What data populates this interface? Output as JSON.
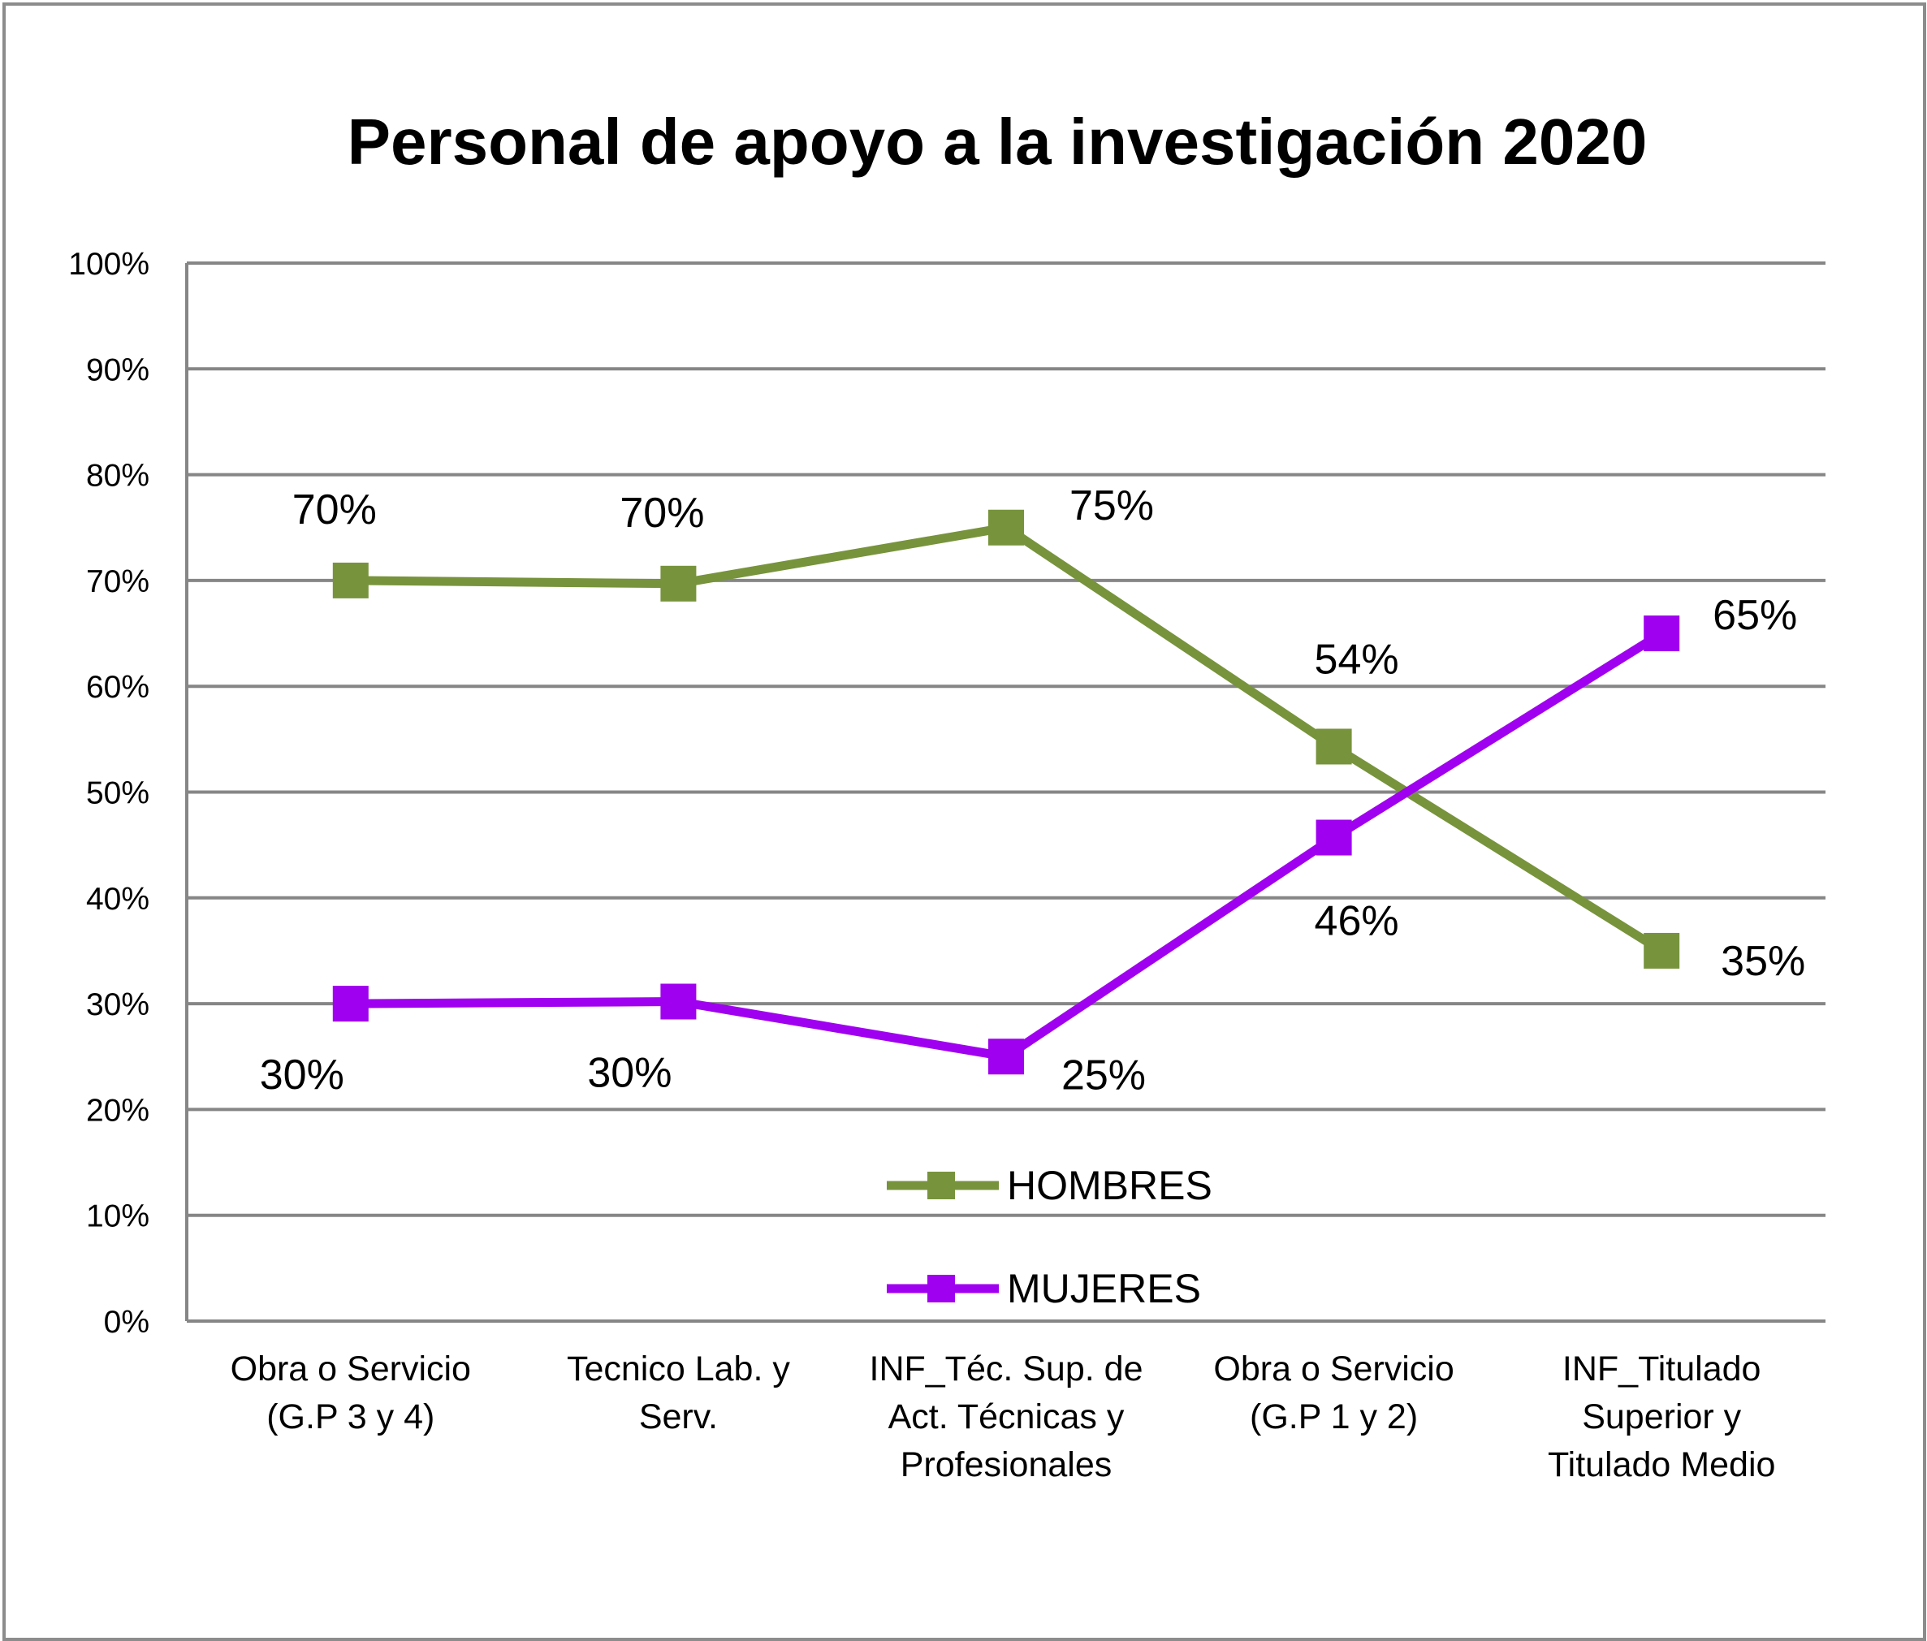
{
  "chart_data": {
    "type": "line",
    "title": "Personal de apoyo a la investigación 2020",
    "xlabel": "",
    "ylabel": "",
    "ylim": [
      0,
      100
    ],
    "y_tick_labels": [
      "0%",
      "10%",
      "20%",
      "30%",
      "40%",
      "50%",
      "60%",
      "70%",
      "80%",
      "90%",
      "100%"
    ],
    "grid": true,
    "legend_position": "bottom-center inside plot",
    "categories": [
      [
        "Obra o Servicio",
        "(G.P 3 y 4)"
      ],
      [
        "Tecnico Lab. y",
        "Serv."
      ],
      [
        "INF_Téc. Sup. de",
        "Act. Técnicas y",
        "Profesionales"
      ],
      [
        "Obra o Servicio",
        "(G.P 1 y 2)"
      ],
      [
        "INF_Titulado",
        "Superior y",
        "Titulado Medio"
      ]
    ],
    "series": [
      {
        "name": "HOMBRES",
        "color": "#77933c",
        "values": [
          70,
          69.7,
          75,
          54.3,
          35
        ],
        "labels": [
          "70%",
          "70%",
          "75%",
          "54%",
          "35%"
        ]
      },
      {
        "name": "MUJERES",
        "color": "#a000f0",
        "values": [
          30,
          30.2,
          25,
          45.7,
          65
        ],
        "labels": [
          "30%",
          "30%",
          "25%",
          "46%",
          "65%"
        ]
      }
    ]
  }
}
